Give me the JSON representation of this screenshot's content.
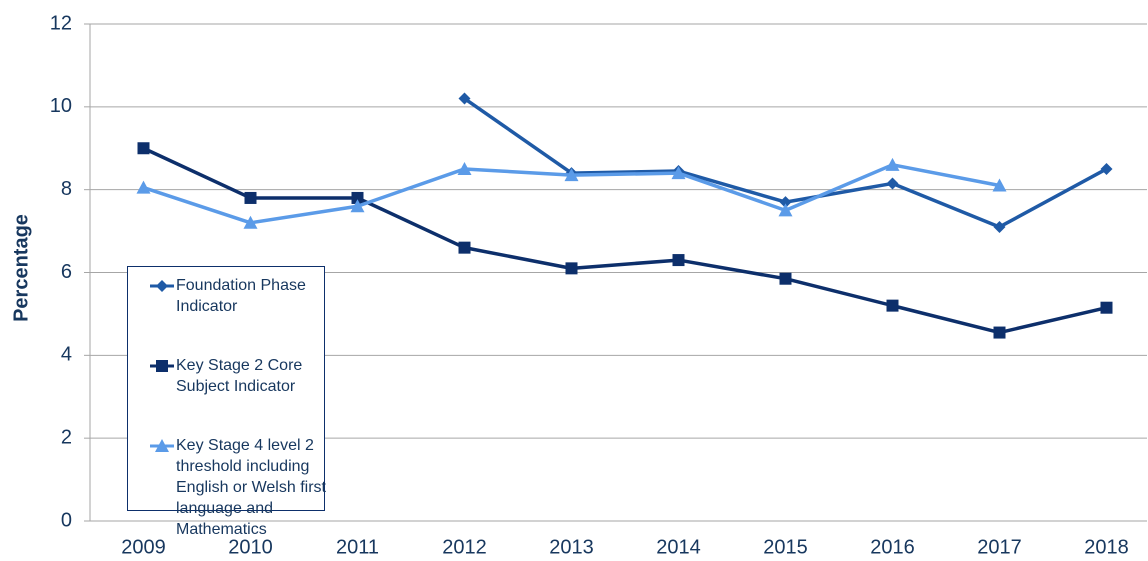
{
  "chart_data": {
    "type": "line",
    "y_label": "Percentage",
    "categories": [
      "2009",
      "2010",
      "2011",
      "2012",
      "2013",
      "2014",
      "2015",
      "2016",
      "2017",
      "2018"
    ],
    "series": [
      {
        "name": "Foundation Phase Indicator",
        "color": "#1f5aa6",
        "marker": "diamond",
        "values": [
          null,
          null,
          null,
          10.2,
          8.4,
          8.45,
          7.7,
          8.15,
          7.1,
          8.5
        ]
      },
      {
        "name": "Key Stage 2  Core Subject Indicator",
        "color": "#0d2f6b",
        "marker": "square",
        "values": [
          9.0,
          7.8,
          7.8,
          6.6,
          6.1,
          6.3,
          5.85,
          5.2,
          4.55,
          5.15
        ]
      },
      {
        "name": "Key Stage 4 level 2 threshold including English or Welsh first language and Mathematics",
        "color": "#5b9be8",
        "marker": "triangle",
        "values": [
          8.05,
          7.2,
          7.6,
          8.5,
          8.35,
          8.4,
          7.5,
          8.6,
          8.1,
          null
        ]
      }
    ],
    "ylim": [
      0,
      12
    ],
    "yticks": [
      0,
      2,
      4,
      6,
      8,
      10,
      12
    ],
    "grid": true
  }
}
